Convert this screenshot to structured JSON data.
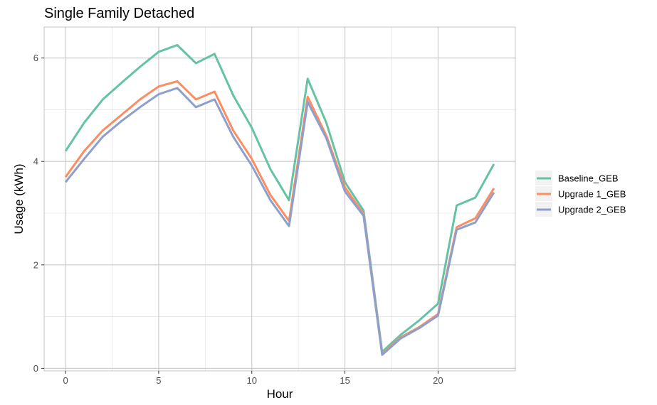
{
  "chart_data": {
    "type": "line",
    "title": "Single Family Detached",
    "xlabel": "Hour",
    "ylabel": "Usage (kWh)",
    "xlim": [
      -1.15,
      24.15
    ],
    "ylim": [
      -0.05,
      6.6
    ],
    "x_ticks": [
      0,
      5,
      10,
      15,
      20
    ],
    "y_ticks": [
      0,
      2,
      4,
      6
    ],
    "grid": true,
    "legend_position": "right",
    "x": [
      0,
      1,
      2,
      3,
      4,
      5,
      6,
      7,
      8,
      9,
      10,
      11,
      12,
      13,
      14,
      15,
      16,
      17,
      18,
      19,
      20,
      21,
      22,
      23
    ],
    "series": [
      {
        "name": "Baseline_GEB",
        "color": "#66c2a5",
        "values": [
          4.2,
          4.75,
          5.2,
          5.52,
          5.83,
          6.12,
          6.25,
          5.9,
          6.08,
          5.28,
          4.65,
          3.85,
          3.25,
          5.6,
          4.75,
          3.6,
          3.05,
          0.32,
          0.65,
          0.93,
          1.25,
          3.15,
          3.3,
          3.95
        ]
      },
      {
        "name": "Upgrade 1_GEB",
        "color": "#fc8d62",
        "values": [
          3.7,
          4.2,
          4.6,
          4.9,
          5.2,
          5.45,
          5.55,
          5.2,
          5.35,
          4.6,
          4.05,
          3.35,
          2.85,
          5.25,
          4.5,
          3.5,
          2.98,
          0.28,
          0.6,
          0.8,
          1.05,
          2.73,
          2.9,
          3.48
        ]
      },
      {
        "name": "Upgrade 2_GEB",
        "color": "#8da0cb",
        "values": [
          3.6,
          4.05,
          4.48,
          4.78,
          5.05,
          5.3,
          5.42,
          5.05,
          5.2,
          4.48,
          3.92,
          3.25,
          2.75,
          5.15,
          4.45,
          3.42,
          2.95,
          0.26,
          0.58,
          0.78,
          1.02,
          2.68,
          2.82,
          3.4
        ]
      }
    ]
  }
}
